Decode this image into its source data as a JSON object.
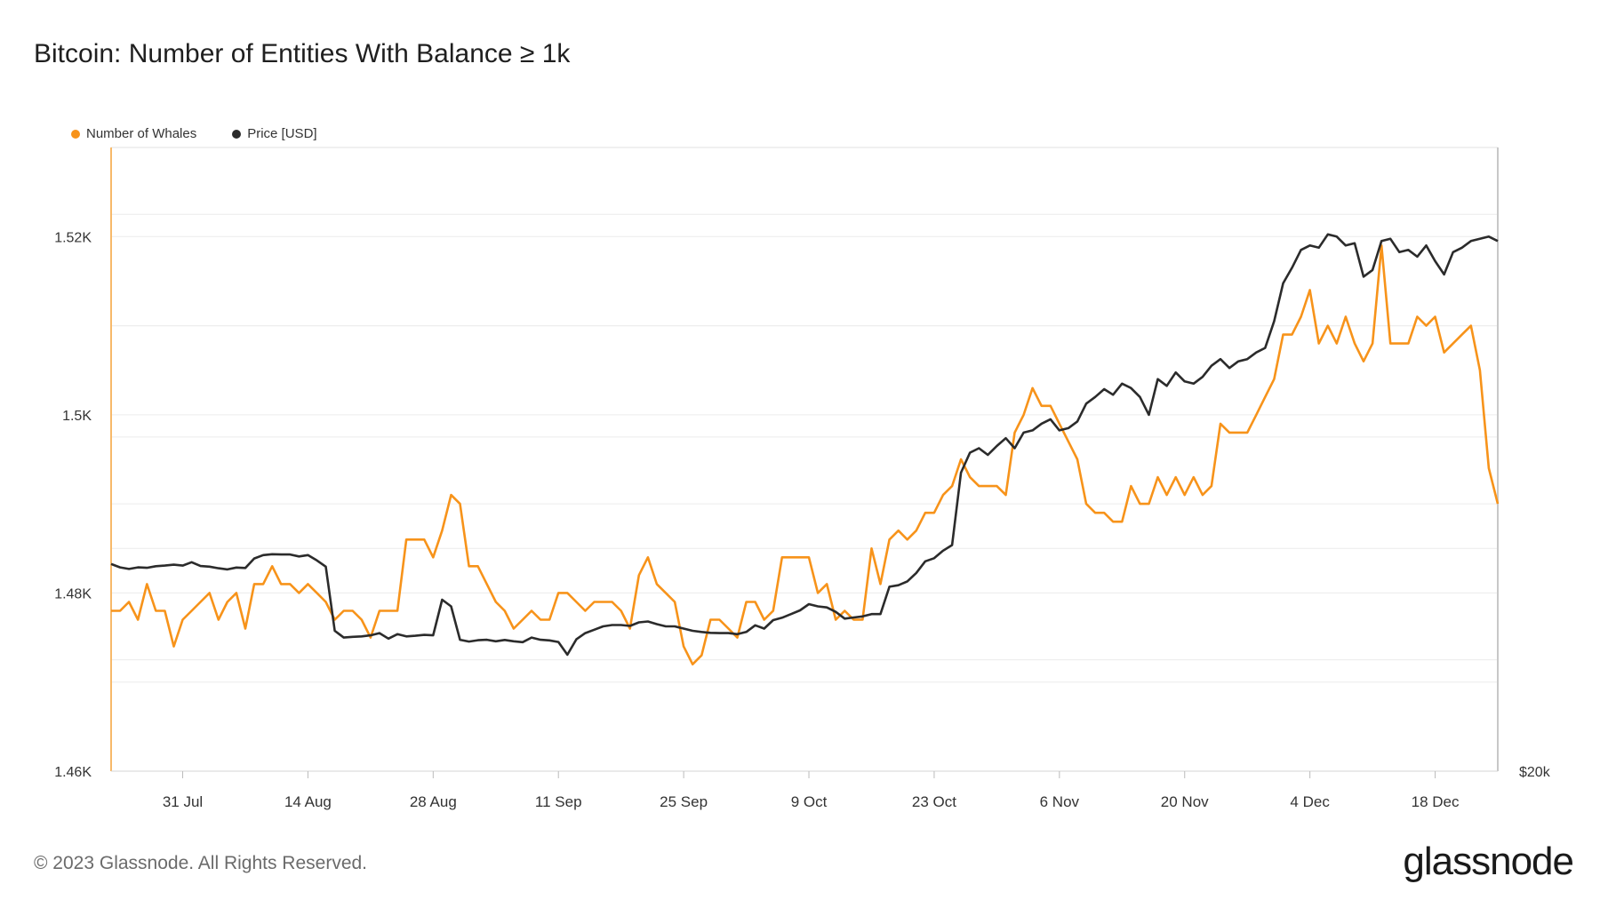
{
  "title": "Bitcoin: Number of Entities With Balance ≥ 1k",
  "footer": "© 2023 Glassnode. All Rights Reserved.",
  "brand": "glassnode",
  "legend": [
    {
      "label": "Number of Whales",
      "color": "#f7931a"
    },
    {
      "label": "Price [USD]",
      "color": "#2b2b2b"
    }
  ],
  "chart_data": {
    "type": "line",
    "grid": true,
    "legend_position": "top-left",
    "x_ticks": [
      "31 Jul",
      "14 Aug",
      "28 Aug",
      "11 Sep",
      "25 Sep",
      "9 Oct",
      "23 Oct",
      "6 Nov",
      "20 Nov",
      "4 Dec",
      "18 Dec"
    ],
    "y_left": {
      "ticks": [
        "1.46K",
        "1.48K",
        "1.5K",
        "1.52K"
      ],
      "ylim": [
        1460,
        1530
      ]
    },
    "y_right": {
      "ticks": [
        "$20k"
      ],
      "ylim": [
        20000,
        48000
      ]
    },
    "series": [
      {
        "name": "Number of Whales",
        "color": "#f7931a",
        "axis": "left",
        "values": [
          1478,
          1478,
          1479,
          1477,
          1481,
          1478,
          1478,
          1474,
          1477,
          1478,
          1479,
          1480,
          1477,
          1479,
          1480,
          1476,
          1481,
          1481,
          1483,
          1481,
          1481,
          1480,
          1481,
          1480,
          1479,
          1477,
          1478,
          1478,
          1477,
          1475,
          1478,
          1478,
          1478,
          1486,
          1486,
          1486,
          1484,
          1487,
          1491,
          1490,
          1483,
          1483,
          1481,
          1479,
          1478,
          1476,
          1477,
          1478,
          1477,
          1477,
          1480,
          1480,
          1479,
          1478,
          1479,
          1479,
          1479,
          1478,
          1476,
          1482,
          1484,
          1481,
          1480,
          1479,
          1474,
          1472,
          1473,
          1477,
          1477,
          1476,
          1475,
          1479,
          1479,
          1477,
          1478,
          1484,
          1484,
          1484,
          1484,
          1480,
          1481,
          1477,
          1478,
          1477,
          1477,
          1485,
          1481,
          1486,
          1487,
          1486,
          1487,
          1489,
          1489,
          1491,
          1492,
          1495,
          1493,
          1492,
          1492,
          1492,
          1491,
          1498,
          1500,
          1503,
          1501,
          1501,
          1499,
          1497,
          1495,
          1490,
          1489,
          1489,
          1488,
          1488,
          1492,
          1490,
          1490,
          1493,
          1491,
          1493,
          1491,
          1493,
          1491,
          1492,
          1499,
          1498,
          1498,
          1498,
          1500,
          1502,
          1504,
          1509,
          1509,
          1511,
          1514,
          1508,
          1510,
          1508,
          1511,
          1508,
          1506,
          1508,
          1519,
          1508,
          1508,
          1508,
          1511,
          1510,
          1511,
          1507,
          1508,
          1509,
          1510,
          1505,
          1494,
          1490
        ]
      },
      {
        "name": "Price [USD]",
        "color": "#2b2b2b",
        "axis": "right",
        "values": [
          29300,
          29150,
          29080,
          29150,
          29130,
          29200,
          29230,
          29270,
          29230,
          29380,
          29210,
          29180,
          29110,
          29060,
          29140,
          29120,
          29550,
          29700,
          29740,
          29730,
          29730,
          29640,
          29700,
          29460,
          29180,
          26300,
          26000,
          26030,
          26050,
          26100,
          26200,
          25950,
          26150,
          26050,
          26080,
          26120,
          26100,
          27700,
          27400,
          25900,
          25820,
          25880,
          25900,
          25830,
          25890,
          25830,
          25790,
          26000,
          25900,
          25870,
          25800,
          25230,
          25920,
          26200,
          26350,
          26500,
          26560,
          26560,
          26520,
          26680,
          26720,
          26600,
          26500,
          26500,
          26400,
          26300,
          26250,
          26210,
          26200,
          26200,
          26150,
          26250,
          26550,
          26400,
          26780,
          26890,
          27050,
          27220,
          27500,
          27400,
          27350,
          27150,
          26850,
          26900,
          26950,
          27050,
          27050,
          28280,
          28350,
          28520,
          28900,
          29420,
          29560,
          29900,
          30150,
          33400,
          34300,
          34500,
          34200,
          34600,
          34950,
          34500,
          35200,
          35300,
          35600,
          35800,
          35300,
          35400,
          35700,
          36500,
          36800,
          37150,
          36900,
          37400,
          37200,
          36800,
          36000,
          37600,
          37300,
          37900,
          37500,
          37400,
          37700,
          38200,
          38500,
          38100,
          38400,
          38500,
          38800,
          39000,
          40200,
          41900,
          42600,
          43400,
          43600,
          43500,
          44100,
          44000,
          43600,
          43700,
          42200,
          42500,
          43800,
          43900,
          43300,
          43400,
          43100,
          43600,
          42900,
          42300,
          43300,
          43500,
          43800,
          43900,
          44000,
          43800
        ]
      }
    ]
  }
}
